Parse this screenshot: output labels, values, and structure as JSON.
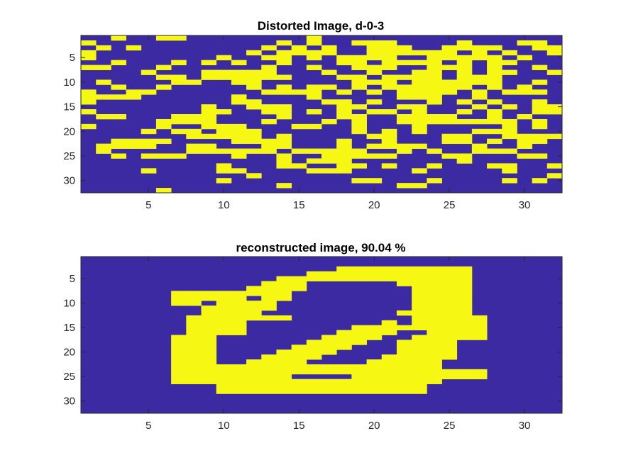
{
  "colors": {
    "low": "#3c2aa3",
    "high": "#f7f714",
    "axis": "#262626",
    "background": "#ffffff"
  },
  "chart_data": [
    {
      "type": "heatmap",
      "title": "Distorted Image, d-0-3",
      "xlabel": "",
      "ylabel": "",
      "xlim": [
        0.5,
        32.5
      ],
      "ylim": [
        0.5,
        32.5
      ],
      "y_reversed": true,
      "xticks": [
        5,
        10,
        15,
        20,
        25,
        30
      ],
      "yticks": [
        5,
        10,
        15,
        20,
        25,
        30
      ],
      "grid": false,
      "colormap": "two-level (0 = blue, 1 = yellow)",
      "rows": [
        "00100110000000010000000000000000",
        "10000000000001010011100001000110",
        "01010000000010101001110011110011",
        "10000000000101111001111110101001",
        "10000000010011010111100111110100",
        "00100010101001000110111101011000",
        "11000100000010010011100111010010",
        "00001000111110001001001101011001",
        "00000110111111000110111101110000",
        "01000011001100000011101111110010",
        "00100100000101011010111111010100",
        "10011000000011110101011110101110",
        "11110000001000010000011100100000",
        "10000000001100001101000101010010",
        "00000000100111000110011000101011",
        "10000000110011010101101001010011",
        "01100011100001000110011110010100",
        "00000111100010001010011111111010",
        "10000100111000110010001000001010",
        "00001011011100000010101000111000",
        "00000001111101000001100011001111",
        "00111100001111000100100011010110",
        "01111001100011000101111000100100",
        "01000001111110111110010100111000",
        "00101110001001001111100011000110",
        "00000000000001011100000001000000",
        "00000000010001100110100100011001",
        "00001000011000011100001000001000",
        "00000000000100000000000000000001",
        "00000000010000000011000100001010",
        "00000000000001000000011000000000",
        "00000100000000000000000000000000"
      ]
    },
    {
      "type": "heatmap",
      "title": "reconstructed image, 90.04 %",
      "xlabel": "",
      "ylabel": "",
      "xlim": [
        0.5,
        32.5
      ],
      "ylim": [
        0.5,
        32.5
      ],
      "y_reversed": true,
      "xticks": [
        5,
        10,
        15,
        20,
        25,
        30
      ],
      "yticks": [
        5,
        10,
        15,
        20,
        25,
        30
      ],
      "grid": false,
      "colormap": "two-level (0 = blue, 1 = yellow)",
      "rows": [
        "00000000000000000000000000000000",
        "00000000000000000000000000000000",
        "00000000000000000111111111000000",
        "00000000000000011111111111000000",
        "00000000000001111111111111000000",
        "00000000000011100000011111000000",
        "00000000000111100000001111000000",
        "00000011111111000000001111000000",
        "00000011111011000000001111000000",
        "00000011011110000000001111000000",
        "00000000111110000000001111000000",
        "00000000111100000000011111000000",
        "00000001111111000000001111100000",
        "00000001111000000000101111100000",
        "00000001111000000011111111100000",
        "00000001111000000111100111100000",
        "00000011100000001111001111100000",
        "00000011100000011110011110000000",
        "00000011100000111100011110000000",
        "00000011100001111000011110000000",
        "00000011100011110000111110000000",
        "00000011100111100001111100000000",
        "00000011111111111111111100000000",
        "00000011111111111111111111100000",
        "00000011111111000011111111100000",
        "00000011111111111111111100000000",
        "00000000011111111111111000000000",
        "00000000011111111111111000000000",
        "00000000000000000000000000000000",
        "00000000000000000000000000000000",
        "00000000000000000000000000000000",
        "00000000000000000000000000000000"
      ]
    }
  ]
}
